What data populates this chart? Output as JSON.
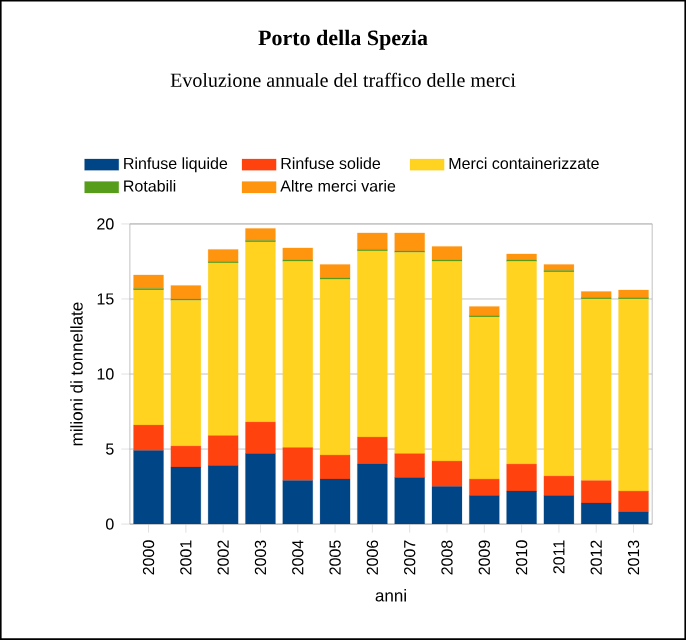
{
  "chart_data": {
    "type": "bar",
    "stacked": true,
    "title": "Porto della Spezia",
    "subtitle": "Evoluzione annuale del traffico delle merci",
    "xlabel": "anni",
    "ylabel": "milioni di tonnellate",
    "categories": [
      "2000",
      "2001",
      "2002",
      "2003",
      "2004",
      "2005",
      "2006",
      "2007",
      "2008",
      "2009",
      "2010",
      "2011",
      "2012",
      "2013"
    ],
    "series": [
      {
        "name": "Rinfuse liquide",
        "color": "#004586",
        "values": [
          4.9,
          3.8,
          3.9,
          4.7,
          2.9,
          3.0,
          4.0,
          3.1,
          2.5,
          1.9,
          2.2,
          1.9,
          1.4,
          0.8
        ]
      },
      {
        "name": "Rinfuse solide",
        "color": "#ff420e",
        "values": [
          1.7,
          1.4,
          2.0,
          2.1,
          2.2,
          1.6,
          1.8,
          1.6,
          1.7,
          1.1,
          1.8,
          1.3,
          1.5,
          1.4
        ]
      },
      {
        "name": "Merci containerizzate",
        "color": "#ffd320",
        "values": [
          9.0,
          9.7,
          11.5,
          12.0,
          12.4,
          11.7,
          12.4,
          13.4,
          13.3,
          10.8,
          13.5,
          13.6,
          12.1,
          12.8
        ]
      },
      {
        "name": "Rotabili",
        "color": "#579d1c",
        "values": [
          0.1,
          0.1,
          0.1,
          0.1,
          0.1,
          0.1,
          0.1,
          0.1,
          0.1,
          0.1,
          0.1,
          0.1,
          0.1,
          0.1
        ]
      },
      {
        "name": "Altre merci varie",
        "color": "#ff950e",
        "values": [
          0.9,
          0.9,
          0.8,
          0.8,
          0.8,
          0.9,
          1.1,
          1.2,
          0.9,
          0.6,
          0.4,
          0.4,
          0.4,
          0.5
        ]
      }
    ],
    "ylim": [
      0,
      20
    ],
    "yticks": [
      0,
      5,
      10,
      15,
      20
    ],
    "grid": "y",
    "legend": "top"
  }
}
